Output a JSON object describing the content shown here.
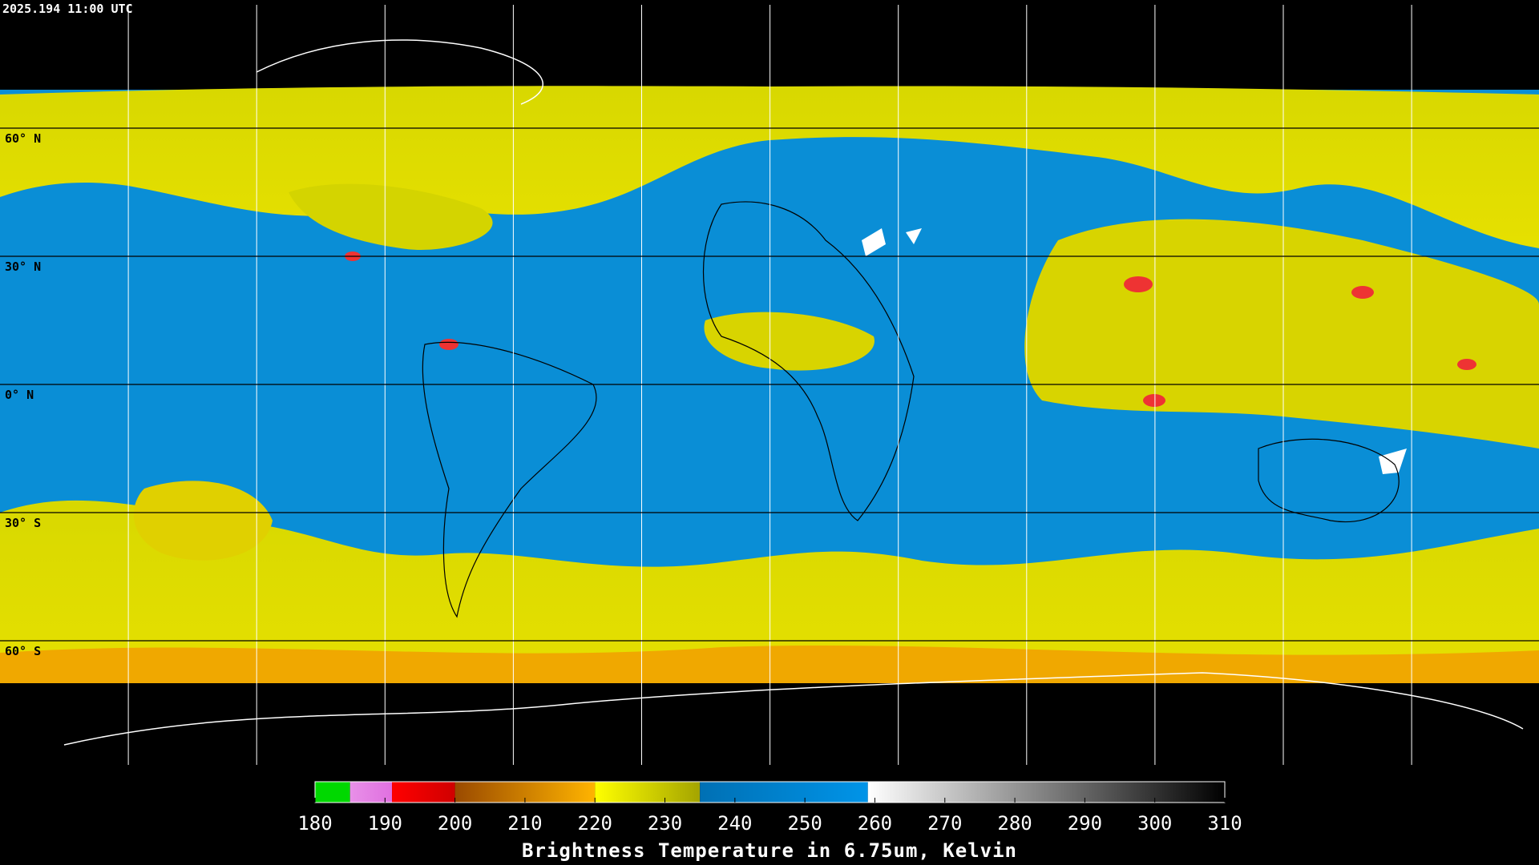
{
  "timestamp": "2025.194 11:00 UTC",
  "latitude_labels": [
    "60° N",
    "30° N",
    "0° N",
    "30° S",
    "60° S"
  ],
  "colorbar": {
    "title": "Brightness Temperature in 6.75um, Kelvin",
    "range": [
      180,
      310
    ],
    "ticks": [
      180,
      190,
      200,
      210,
      220,
      230,
      240,
      250,
      260,
      270,
      280,
      290,
      300,
      310
    ],
    "segments": [
      {
        "from": 180,
        "to": 185,
        "colors": [
          "#00d800",
          "#00d800"
        ]
      },
      {
        "from": 185,
        "to": 191,
        "colors": [
          "#e890e8",
          "#e070e0"
        ]
      },
      {
        "from": 191,
        "to": 200,
        "colors": [
          "#ff0000",
          "#d00000"
        ]
      },
      {
        "from": 200,
        "to": 220,
        "colors": [
          "#9a4a00",
          "#ffb400"
        ]
      },
      {
        "from": 220,
        "to": 235,
        "colors": [
          "#ffff00",
          "#a4a400"
        ]
      },
      {
        "from": 235,
        "to": 259,
        "colors": [
          "#0070b4",
          "#0094e8"
        ]
      },
      {
        "from": 259,
        "to": 310,
        "colors": [
          "#ffffff",
          "#000000"
        ]
      }
    ]
  }
}
